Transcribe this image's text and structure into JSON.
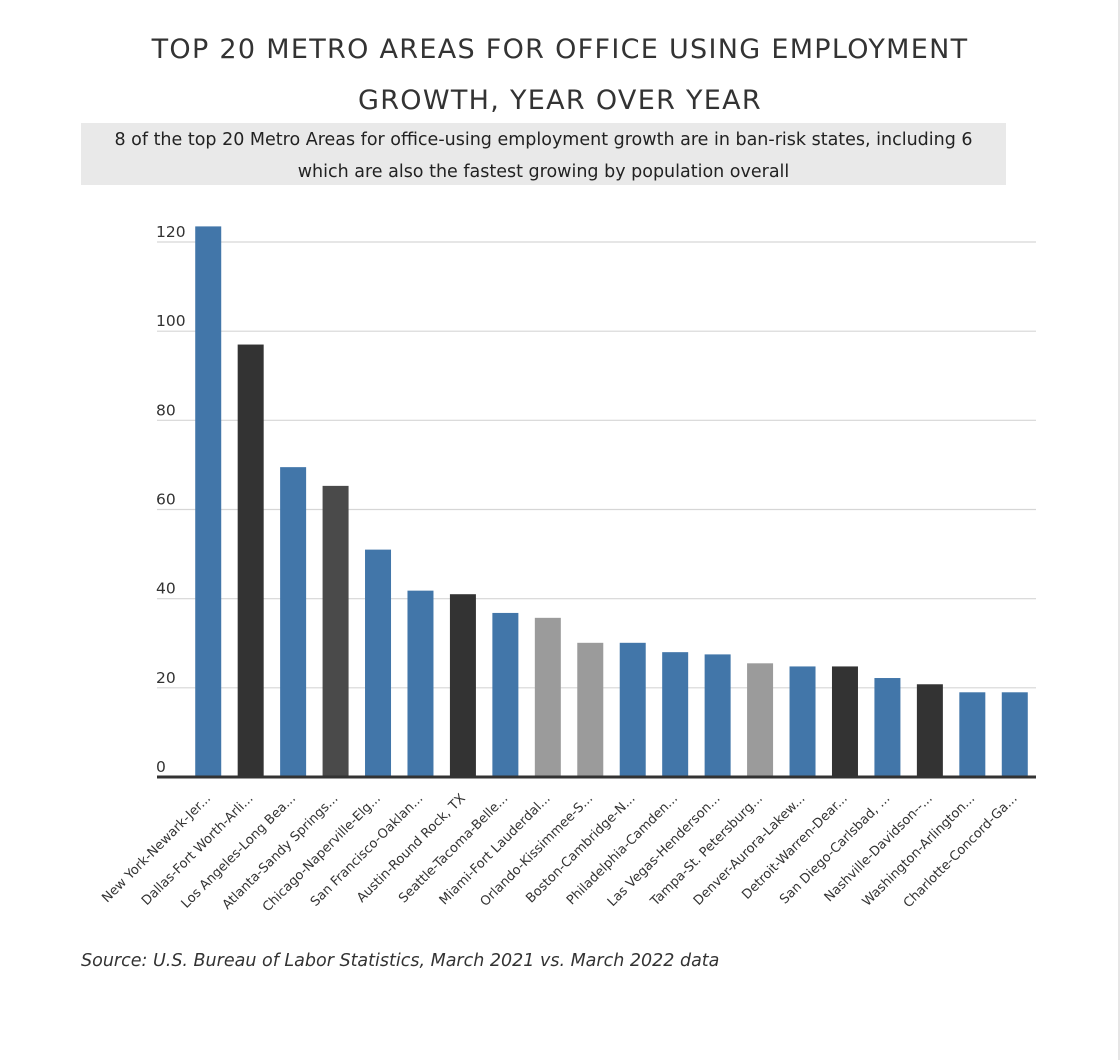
{
  "title": "TOP 20 METRO AREAS FOR OFFICE USING EMPLOYMENT GROWTH, YEAR OVER YEAR",
  "subtitle": "8 of the top 20 Metro Areas for office-using employment growth are in ban-risk states, including 6 which are also the fastest growing by population overall",
  "source": "Source: U.S. Bureau of Labor Statistics, March 2021 vs. March 2022 data",
  "colors": {
    "blue": "#4276a9",
    "black": "#333333",
    "dark_gray": "#4a4a4a",
    "light_gray": "#9b9b9b",
    "grid": "#d6d6d6",
    "axis": "#333333"
  },
  "chart_data": {
    "type": "bar",
    "title": "TOP 20 METRO AREAS FOR OFFICE USING EMPLOYMENT GROWTH, YEAR OVER YEAR",
    "ylim": [
      0,
      120
    ],
    "yticks": [
      0,
      20,
      40,
      60,
      80,
      100,
      120
    ],
    "grid": true,
    "categories": [
      "New York-Newark-Jer...",
      "Dallas-Fort Worth-Arli...",
      "Los Angeles-Long Bea...",
      "Atlanta-Sandy Springs...",
      "Chicago-Naperville-Elg...",
      "San Francisco-Oaklan...",
      "Austin-Round Rock, TX",
      "Seattle-Tacoma-Belle...",
      "Miami-Fort Lauderdal...",
      "Orlando-Kissimmee-S...",
      "Boston-Cambridge-N...",
      "Philadelphia-Camden...",
      "Las Vegas-Henderson...",
      "Tampa-St. Petersburg...",
      "Denver-Aurora-Lakew...",
      "Detroit-Warren-Dear...",
      "San Diego-Carlsbad, ...",
      "Nashville-Davidson--...",
      "Washington-Arlington...",
      "Charlotte-Concord-Ga..."
    ],
    "values": [
      123.5,
      97,
      69.5,
      65.3,
      51,
      41.8,
      41,
      36.8,
      35.7,
      30.1,
      30.1,
      28,
      27.5,
      25.5,
      24.8,
      24.8,
      22.2,
      20.8,
      19,
      19
    ],
    "bar_colors": [
      "blue",
      "black",
      "blue",
      "dark_gray",
      "blue",
      "blue",
      "black",
      "blue",
      "light_gray",
      "light_gray",
      "blue",
      "blue",
      "blue",
      "light_gray",
      "blue",
      "black",
      "blue",
      "black",
      "blue",
      "blue"
    ]
  }
}
